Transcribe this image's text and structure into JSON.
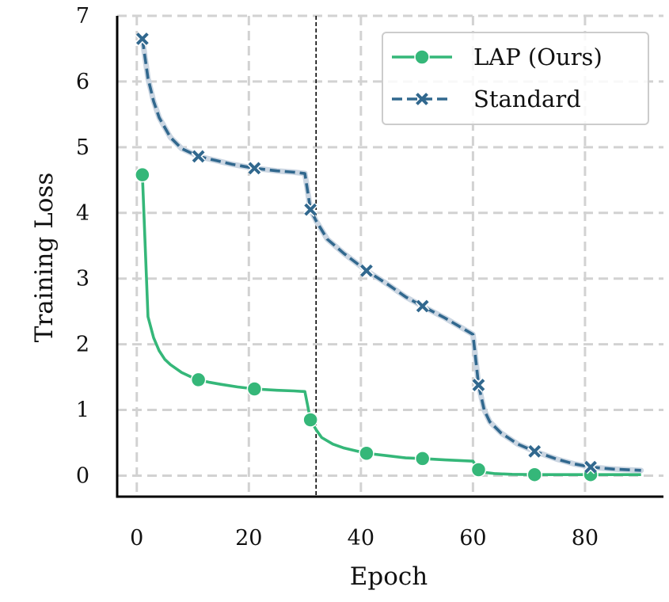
{
  "chart_data": {
    "type": "line",
    "title": "",
    "xlabel": "Epoch",
    "ylabel": "Training Loss",
    "xlim": [
      -3.5,
      94
    ],
    "ylim": [
      -0.32,
      7
    ],
    "xticks": [
      0,
      20,
      40,
      60,
      80
    ],
    "yticks": [
      0,
      1,
      2,
      3,
      4,
      5,
      6,
      7
    ],
    "grid": true,
    "legend_position": "top-right",
    "vline_x": 32,
    "series": [
      {
        "name": "LAP (Ours)",
        "color": "#35b779",
        "line_style": "solid",
        "marker": "circle",
        "x": [
          1,
          2,
          3,
          4,
          5,
          6,
          8,
          10,
          11,
          13,
          15,
          18,
          21,
          25,
          28,
          30,
          31,
          32,
          33,
          35,
          37,
          39,
          41,
          45,
          48,
          51,
          55,
          60,
          61,
          62,
          64,
          67,
          71,
          75,
          78,
          81,
          85,
          90
        ],
        "y": [
          4.58,
          2.42,
          2.1,
          1.9,
          1.77,
          1.69,
          1.57,
          1.49,
          1.46,
          1.42,
          1.39,
          1.35,
          1.32,
          1.3,
          1.29,
          1.28,
          0.85,
          0.7,
          0.58,
          0.48,
          0.42,
          0.38,
          0.34,
          0.3,
          0.27,
          0.26,
          0.24,
          0.22,
          0.09,
          0.05,
          0.03,
          0.02,
          0.015,
          0.015,
          0.015,
          0.015,
          0.015,
          0.015
        ],
        "marker_x": [
          1,
          11,
          21,
          31,
          41,
          51,
          61,
          71,
          81
        ],
        "marker_y": [
          4.58,
          1.46,
          1.32,
          0.85,
          0.34,
          0.26,
          0.09,
          0.015,
          0.015
        ]
      },
      {
        "name": "Standard",
        "color": "#31688e",
        "line_style": "dashed",
        "marker": "x",
        "x": [
          1,
          2,
          3,
          4,
          6,
          8,
          10,
          11,
          14,
          17,
          21,
          25,
          28,
          30,
          31,
          32,
          34,
          37,
          41,
          45,
          48,
          51,
          55,
          58,
          60,
          61,
          62,
          63,
          65,
          68,
          71,
          75,
          78,
          81,
          85,
          90
        ],
        "y": [
          6.65,
          6.05,
          5.7,
          5.45,
          5.15,
          4.98,
          4.9,
          4.86,
          4.8,
          4.74,
          4.68,
          4.64,
          4.62,
          4.6,
          4.05,
          3.88,
          3.6,
          3.38,
          3.12,
          2.9,
          2.72,
          2.58,
          2.4,
          2.25,
          2.15,
          1.38,
          1.0,
          0.82,
          0.65,
          0.48,
          0.37,
          0.25,
          0.18,
          0.13,
          0.1,
          0.08
        ],
        "marker_x": [
          1,
          11,
          21,
          31,
          41,
          51,
          61,
          71,
          81
        ],
        "marker_y": [
          6.65,
          4.86,
          4.68,
          4.05,
          3.12,
          2.58,
          1.38,
          0.37,
          0.13
        ]
      }
    ]
  }
}
